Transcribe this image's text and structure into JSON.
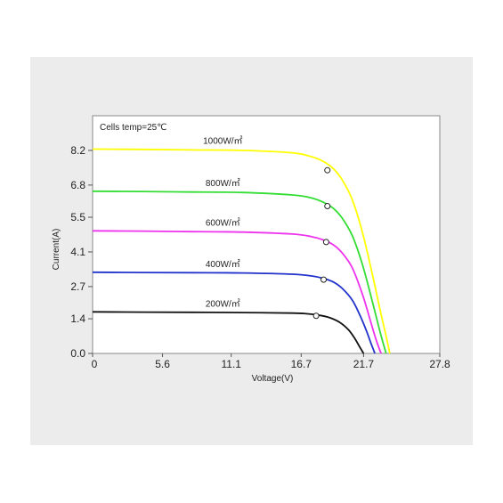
{
  "chart_data": {
    "type": "line",
    "title": "Cells temp=25℃",
    "xlabel": "Voltage(V)",
    "ylabel": "Current(A)",
    "xlim": [
      0,
      27.8
    ],
    "ylim": [
      0,
      9.6
    ],
    "x_ticks": [
      "0",
      "5.6",
      "11.1",
      "16.7",
      "21.7",
      "27.8"
    ],
    "x_tick_values": [
      0,
      5.6,
      11.1,
      16.7,
      21.7,
      27.8
    ],
    "y_ticks": [
      "0.0",
      "1.4",
      "2.7",
      "4.1",
      "5.5",
      "6.8",
      "8.2"
    ],
    "y_tick_values": [
      0.0,
      1.4,
      2.7,
      4.1,
      5.5,
      6.8,
      8.2
    ],
    "grid": false,
    "series": [
      {
        "name": "1000W/㎡",
        "color": "#ffff00",
        "x": [
          0,
          4,
          8,
          12,
          16,
          17.5,
          18.5,
          19.3,
          20.0,
          20.8,
          21.6,
          22.4,
          23.0,
          23.5,
          23.8
        ],
        "y": [
          8.25,
          8.24,
          8.22,
          8.2,
          8.1,
          7.95,
          7.75,
          7.45,
          7.0,
          6.2,
          4.9,
          3.2,
          1.8,
          0.7,
          0.0
        ],
        "mpp": {
          "x": 18.8,
          "y": 7.4
        }
      },
      {
        "name": "800W/㎡",
        "color": "#33dd33",
        "x": [
          0,
          4,
          8,
          12,
          16,
          17.5,
          18.5,
          19.3,
          20.0,
          20.8,
          21.6,
          22.4,
          23.0,
          23.5
        ],
        "y": [
          6.55,
          6.54,
          6.52,
          6.5,
          6.4,
          6.28,
          6.1,
          5.85,
          5.45,
          4.75,
          3.6,
          2.1,
          0.9,
          0.0
        ],
        "mpp": {
          "x": 18.8,
          "y": 5.95
        }
      },
      {
        "name": "600W/㎡",
        "color": "#ee33ee",
        "x": [
          0,
          4,
          8,
          12,
          16,
          17.5,
          18.5,
          19.3,
          20.0,
          20.8,
          21.6,
          22.2,
          22.7,
          23.1
        ],
        "y": [
          4.95,
          4.94,
          4.92,
          4.9,
          4.82,
          4.72,
          4.58,
          4.38,
          4.05,
          3.45,
          2.4,
          1.4,
          0.55,
          0.0
        ],
        "mpp": {
          "x": 18.7,
          "y": 4.5
        }
      },
      {
        "name": "400W/㎡",
        "color": "#2233cc",
        "x": [
          0,
          4,
          8,
          12,
          16,
          17.5,
          18.5,
          19.3,
          20.0,
          20.8,
          21.4,
          21.9,
          22.3,
          22.6
        ],
        "y": [
          3.28,
          3.27,
          3.26,
          3.25,
          3.2,
          3.13,
          3.03,
          2.88,
          2.62,
          2.15,
          1.55,
          0.95,
          0.4,
          0.0
        ],
        "mpp": {
          "x": 18.5,
          "y": 2.98
        }
      },
      {
        "name": "200W/㎡",
        "color": "#111111",
        "x": [
          0,
          4,
          8,
          12,
          16,
          17.2,
          18.2,
          19.0,
          19.8,
          20.5,
          21.0,
          21.4,
          21.7
        ],
        "y": [
          1.68,
          1.67,
          1.66,
          1.65,
          1.63,
          1.6,
          1.54,
          1.44,
          1.25,
          0.95,
          0.6,
          0.25,
          0.0
        ],
        "mpp": {
          "x": 17.9,
          "y": 1.52
        }
      }
    ]
  }
}
